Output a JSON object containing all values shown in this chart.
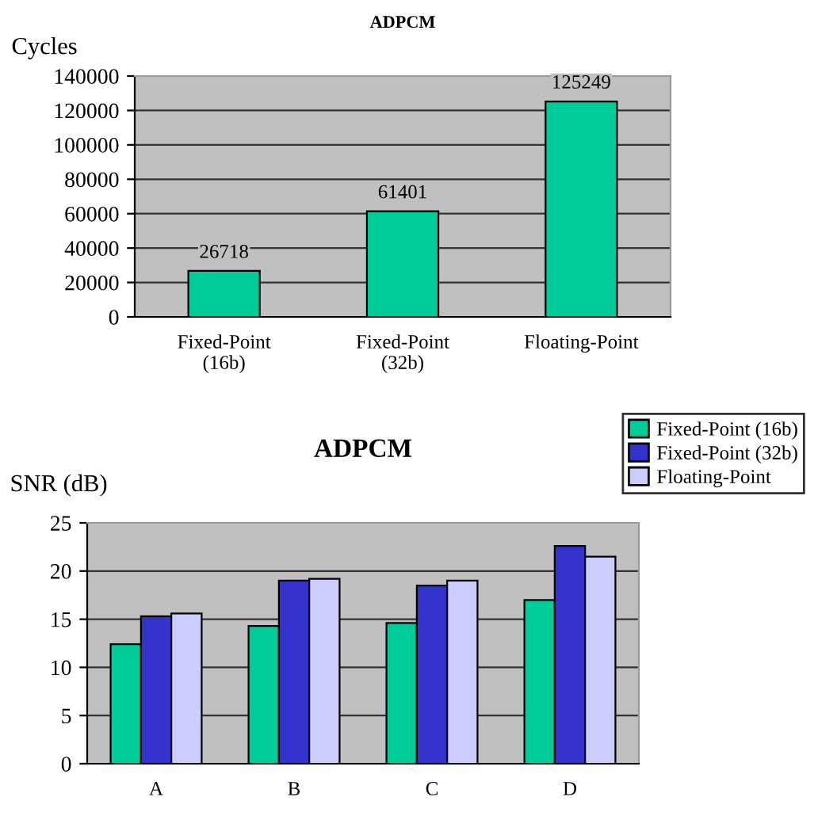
{
  "chart_data": [
    {
      "type": "bar",
      "title": "ADPCM",
      "ylabel": "Cycles",
      "categories": [
        "Fixed-Point\n(16b)",
        "Fixed-Point\n(32b)",
        "Floating-Point"
      ],
      "values": [
        26718,
        61401,
        125249
      ],
      "color": "#00cc99",
      "data_labels": true,
      "ylim": [
        0,
        140000
      ],
      "yticks": [
        0,
        20000,
        40000,
        60000,
        80000,
        100000,
        120000,
        140000
      ],
      "grid": "y",
      "legend": false
    },
    {
      "type": "bar",
      "title": "ADPCM",
      "ylabel": "SNR (dB)",
      "categories": [
        "A",
        "B",
        "C",
        "D"
      ],
      "series": [
        {
          "name": "Fixed-Point (16b)",
          "color": "#00cc99",
          "values": [
            12.4,
            14.3,
            14.6,
            17.0
          ]
        },
        {
          "name": "Fixed-Point (32b)",
          "color": "#3333cc",
          "values": [
            15.3,
            19.0,
            18.5,
            22.6
          ]
        },
        {
          "name": "Floating-Point",
          "color": "#ccccff",
          "values": [
            15.6,
            19.2,
            19.0,
            21.5
          ]
        }
      ],
      "ylim": [
        0,
        25
      ],
      "yticks": [
        0,
        5,
        10,
        15,
        20,
        25
      ],
      "grid": "y",
      "legend": "top right"
    }
  ]
}
